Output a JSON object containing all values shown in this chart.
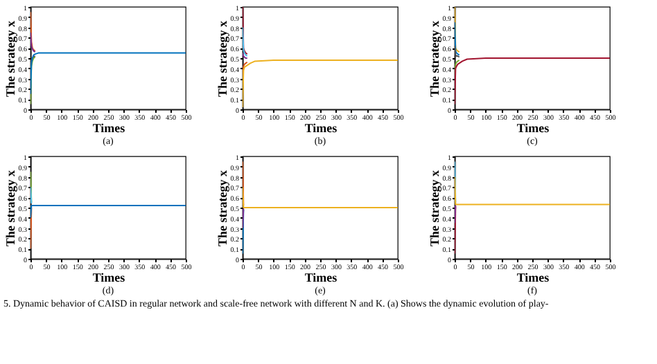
{
  "chart_data": [
    {
      "type": "line",
      "title": "(a)",
      "xlabel": "Times",
      "ylabel": "The strategy x",
      "xlim": [
        0,
        500
      ],
      "ylim": [
        0,
        1
      ],
      "xticks": [
        0,
        50,
        100,
        150,
        200,
        250,
        300,
        350,
        400,
        450,
        500
      ],
      "yticks": [
        0,
        0.1,
        0.2,
        0.3,
        0.4,
        0.5,
        0.6,
        0.7,
        0.8,
        0.9,
        1
      ],
      "line_style": "solid",
      "x": [
        0,
        3,
        6,
        10,
        15,
        25,
        40,
        100,
        500
      ],
      "series": [
        {
          "color": "#d95319",
          "values": [
            0.95,
            0.66,
            0.6,
            0.58,
            0.57,
            null,
            null,
            null,
            null
          ]
        },
        {
          "color": "#7e2f8e",
          "values": [
            0.75,
            0.62,
            0.59,
            0.57,
            0.56,
            null,
            null,
            null,
            null
          ]
        },
        {
          "color": "#4d4d4d",
          "values": [
            0.35,
            0.48,
            0.5,
            0.51,
            0.52,
            null,
            null,
            null,
            null
          ]
        },
        {
          "color": "#77ac30",
          "values": [
            0.05,
            0.42,
            0.47,
            0.5,
            0.51,
            null,
            null,
            null,
            null
          ]
        },
        {
          "color": "#0072bd",
          "values": [
            0.15,
            0.45,
            0.5,
            0.53,
            0.54,
            0.55,
            0.55,
            0.55,
            0.55
          ]
        }
      ]
    },
    {
      "type": "line",
      "title": "(b)",
      "xlabel": "Times",
      "ylabel": "The strategy x",
      "xlim": [
        0,
        500
      ],
      "ylim": [
        0,
        1
      ],
      "xticks": [
        0,
        50,
        100,
        150,
        200,
        250,
        300,
        350,
        400,
        450,
        500
      ],
      "yticks": [
        0,
        0.1,
        0.2,
        0.3,
        0.4,
        0.5,
        0.6,
        0.7,
        0.8,
        0.9,
        1
      ],
      "line_style": "solid",
      "x": [
        0,
        3,
        6,
        10,
        15,
        25,
        40,
        100,
        500
      ],
      "series": [
        {
          "color": "#a2142f",
          "values": [
            1,
            0.6,
            0.57,
            0.55,
            0.54,
            null,
            null,
            null,
            null
          ]
        },
        {
          "color": "#4dbeee",
          "values": [
            0.8,
            0.58,
            0.55,
            0.53,
            0.52,
            null,
            null,
            null,
            null
          ]
        },
        {
          "color": "#7e2f8e",
          "values": [
            0.55,
            0.52,
            0.51,
            0.5,
            0.5,
            null,
            null,
            null,
            null
          ]
        },
        {
          "color": "#d95319",
          "values": [
            0.3,
            0.42,
            0.44,
            0.45,
            0.46,
            null,
            null,
            null,
            null
          ]
        },
        {
          "color": "#edb120",
          "values": [
            0.02,
            0.38,
            0.41,
            0.42,
            0.43,
            0.45,
            0.47,
            0.48,
            0.48
          ]
        }
      ]
    },
    {
      "type": "line",
      "title": "(c)",
      "xlabel": "Times",
      "ylabel": "The strategy x",
      "xlim": [
        0,
        500
      ],
      "ylim": [
        0,
        1
      ],
      "xticks": [
        0,
        50,
        100,
        150,
        200,
        250,
        300,
        350,
        400,
        450,
        500
      ],
      "yticks": [
        0,
        0.1,
        0.2,
        0.3,
        0.4,
        0.5,
        0.6,
        0.7,
        0.8,
        0.9,
        1
      ],
      "line_style": "solid",
      "x": [
        0,
        3,
        6,
        10,
        15,
        25,
        40,
        100,
        500
      ],
      "series": [
        {
          "color": "#edb120",
          "values": [
            1,
            0.6,
            0.58,
            0.57,
            0.56,
            null,
            null,
            null,
            null
          ]
        },
        {
          "color": "#0072bd",
          "values": [
            0.85,
            0.57,
            0.55,
            0.54,
            0.53,
            null,
            null,
            null,
            null
          ]
        },
        {
          "color": "#4d4d4d",
          "values": [
            0.62,
            0.53,
            0.52,
            0.52,
            0.51,
            null,
            null,
            null,
            null
          ]
        },
        {
          "color": "#77ac30",
          "values": [
            0.3,
            0.44,
            0.46,
            0.47,
            0.48,
            null,
            null,
            null,
            null
          ]
        },
        {
          "color": "#a2142f",
          "values": [
            0.05,
            0.4,
            0.42,
            0.44,
            0.45,
            0.47,
            0.49,
            0.5,
            0.5
          ]
        }
      ]
    },
    {
      "type": "line",
      "title": "(d)",
      "xlabel": "Times",
      "ylabel": "The strategy x",
      "xlim": [
        0,
        500
      ],
      "ylim": [
        0,
        1
      ],
      "xticks": [
        0,
        50,
        100,
        150,
        200,
        250,
        300,
        350,
        400,
        450,
        500
      ],
      "yticks": [
        0,
        0.1,
        0.2,
        0.3,
        0.4,
        0.5,
        0.6,
        0.7,
        0.8,
        0.9,
        1
      ],
      "line_style": "solid",
      "x": [
        0,
        3,
        6,
        10,
        100,
        500
      ],
      "series": [
        {
          "color": "#77ac30",
          "values": [
            0.85,
            0.55,
            null,
            null,
            null,
            null
          ]
        },
        {
          "color": "#4dbeee",
          "values": [
            0.7,
            0.54,
            null,
            null,
            null,
            null
          ]
        },
        {
          "color": "#d95319",
          "values": [
            0.1,
            0.5,
            null,
            null,
            null,
            null
          ]
        },
        {
          "color": "#0072bd",
          "values": [
            0.4,
            0.52,
            0.52,
            0.52,
            0.52,
            0.52
          ]
        }
      ],
      "annotations": [
        "5.    Dynamic behavior of CAISD in regular network and scale-free network with different N and K. (a) Shows the dynamic evolution of play-"
      ]
    },
    {
      "type": "line",
      "title": "(e)",
      "xlabel": "Times",
      "ylabel": "The strategy x",
      "xlim": [
        0,
        500
      ],
      "ylim": [
        0,
        1
      ],
      "xticks": [
        0,
        50,
        100,
        150,
        200,
        250,
        300,
        350,
        400,
        450,
        500
      ],
      "yticks": [
        0,
        0.1,
        0.2,
        0.3,
        0.4,
        0.5,
        0.6,
        0.7,
        0.8,
        0.9,
        1
      ],
      "line_style": "solid",
      "x": [
        0,
        3,
        6,
        10,
        100,
        500
      ],
      "series": [
        {
          "color": "#d95319",
          "values": [
            0.95,
            0.52,
            null,
            null,
            null,
            null
          ]
        },
        {
          "color": "#0072bd",
          "values": [
            0.05,
            0.48,
            null,
            null,
            null,
            null
          ]
        },
        {
          "color": "#7e2f8e",
          "values": [
            0.3,
            0.49,
            null,
            null,
            null,
            null
          ]
        },
        {
          "color": "#edb120",
          "values": [
            0.7,
            0.5,
            0.5,
            0.5,
            0.5,
            0.5
          ]
        }
      ]
    },
    {
      "type": "line",
      "title": "(f)",
      "xlabel": "Times",
      "ylabel": "The strategy x",
      "xlim": [
        0,
        500
      ],
      "ylim": [
        0,
        1
      ],
      "xticks": [
        0,
        50,
        100,
        150,
        200,
        250,
        300,
        350,
        400,
        450,
        500
      ],
      "yticks": [
        0,
        0.1,
        0.2,
        0.3,
        0.4,
        0.5,
        0.6,
        0.7,
        0.8,
        0.9,
        1
      ],
      "line_style": "solid",
      "x": [
        0,
        3,
        6,
        10,
        100,
        500
      ],
      "series": [
        {
          "color": "#4dbeee",
          "values": [
            0.95,
            0.55,
            null,
            null,
            null,
            null
          ]
        },
        {
          "color": "#a2142f",
          "values": [
            0.05,
            0.51,
            null,
            null,
            null,
            null
          ]
        },
        {
          "color": "#7e2f8e",
          "values": [
            0.35,
            0.52,
            null,
            null,
            null,
            null
          ]
        },
        {
          "color": "#edb120",
          "values": [
            0.8,
            0.53,
            0.53,
            0.53,
            0.53,
            0.53
          ]
        }
      ]
    }
  ]
}
